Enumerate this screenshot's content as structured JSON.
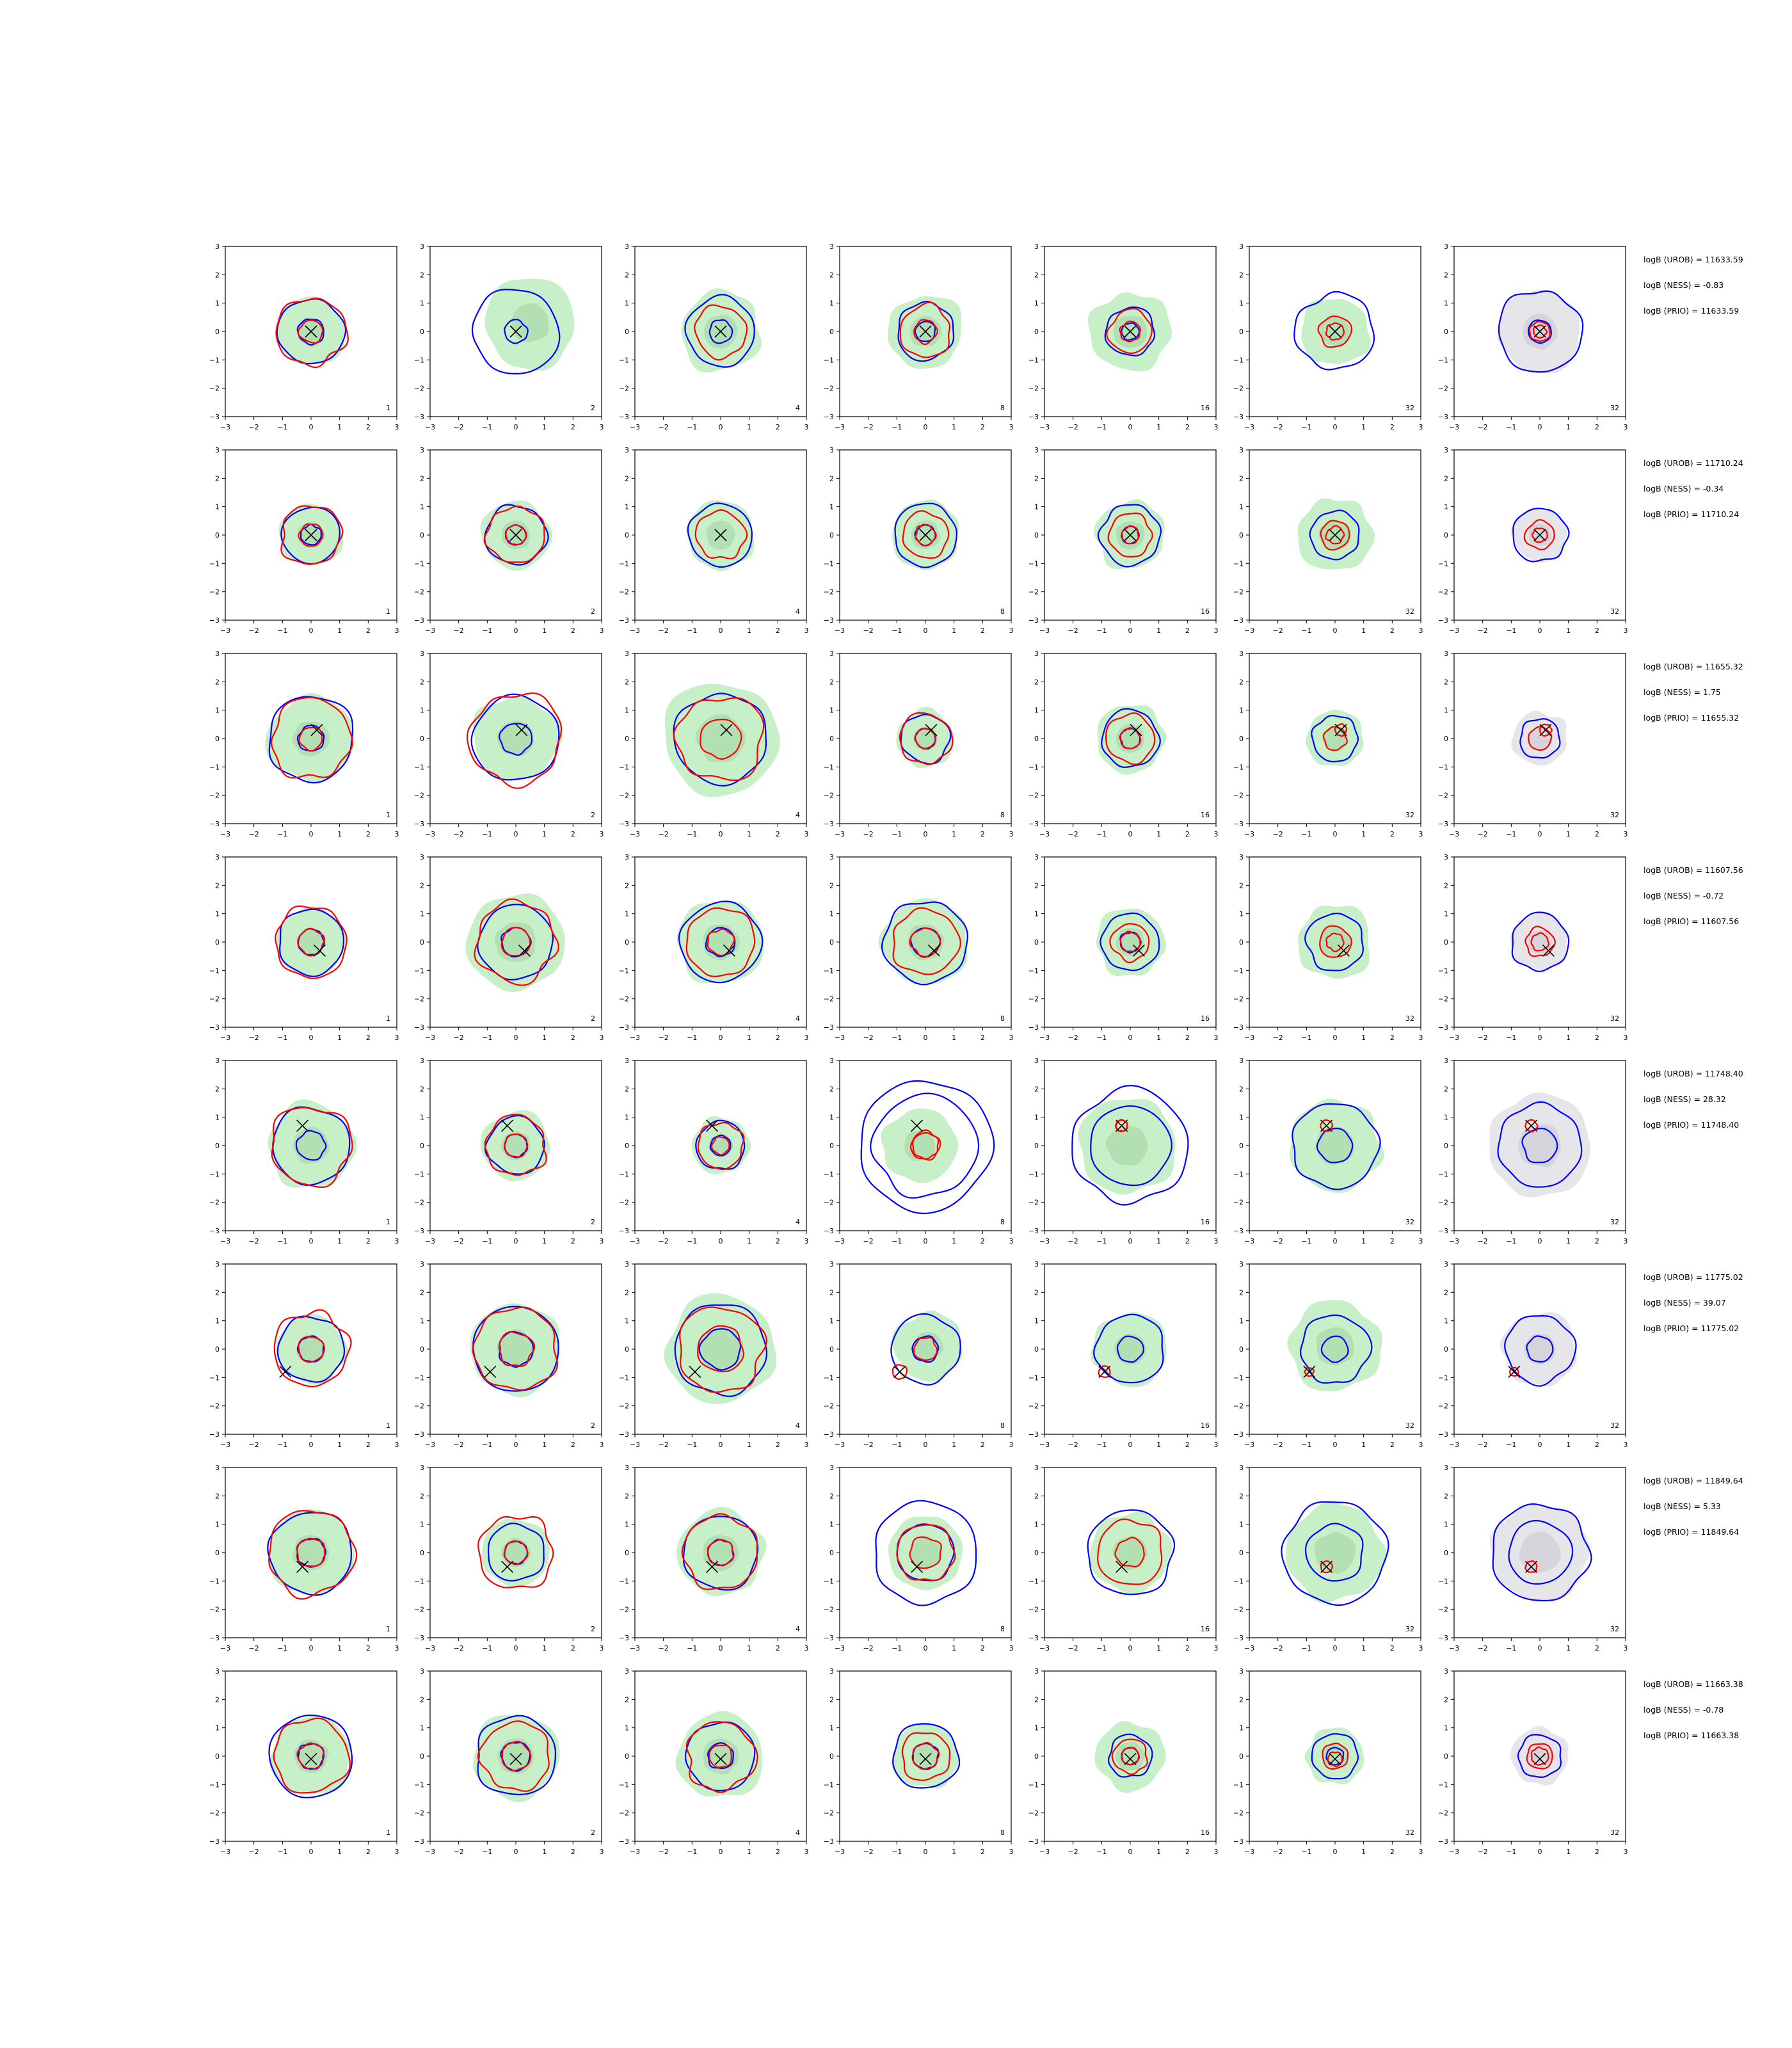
{
  "chart_data": {
    "type": "contour",
    "grid": false,
    "rows": 8,
    "cols": 7,
    "xlim": [
      -3,
      3
    ],
    "ylim": [
      -3,
      3
    ],
    "xticks": [
      -3,
      -2,
      -1,
      0,
      1,
      2,
      3
    ],
    "yticks": [
      -3,
      -2,
      -1,
      0,
      1,
      2,
      3
    ],
    "panel_labels": [
      "1",
      "2",
      "4",
      "8",
      "16",
      "32",
      "32"
    ],
    "colors": {
      "blue_contour": "#0000ff",
      "red_contour": "#ff0000",
      "green_fill": "#c8f0c8",
      "green_inner": "#b3e0b3",
      "grey_fill": "#e6e6ea",
      "grey_inner": "#d4d4da",
      "marker": "#000000"
    },
    "marker_symbol": "×",
    "rows_data": [
      {
        "marker": [
          0.0,
          0.0
        ],
        "annotations": [
          "logB (UROB) = 11633.59",
          "logB (NESS) = -0.83",
          "logB (PRIO) = 11633.59"
        ],
        "panels": [
          {
            "fill_r": 1.2,
            "blue_r": [
              1.15,
              0.45
            ],
            "red_r": [
              1.2,
              0.4
            ]
          },
          {
            "fill_r": 1.6,
            "fill_c": [
              0.5,
              0.3
            ],
            "blue_r": [
              1.5,
              0.4
            ],
            "red_r": []
          },
          {
            "fill_r": 1.4,
            "blue_r": [
              1.2,
              0.4
            ],
            "red_r": [
              0.9
            ]
          },
          {
            "fill_r": 1.3,
            "blue_r": [
              1.0,
              0.35
            ],
            "red_r": [
              0.9,
              0.4
            ]
          },
          {
            "fill_r": 1.4,
            "blue_r": [
              0.85,
              0.3
            ],
            "red_r": [
              0.75,
              0.35
            ]
          },
          {
            "fill_r": 1.2,
            "blue_r": [
              1.35
            ],
            "red_r": [
              0.55,
              0.3
            ]
          },
          {
            "fill_r": 1.45,
            "fill_grey": true,
            "blue_r": [
              1.45,
              0.4
            ],
            "red_r": [
              0.35,
              0.22
            ]
          }
        ]
      },
      {
        "marker": [
          0.0,
          0.0
        ],
        "annotations": [
          "logB (UROB) = 11710.24",
          "logB (NESS) = -0.34",
          "logB (PRIO) = 11710.24"
        ],
        "panels": [
          {
            "fill_r": 1.1,
            "blue_r": [
              1.0,
              0.35
            ],
            "red_r": [
              1.05,
              0.4
            ]
          },
          {
            "fill_r": 1.2,
            "blue_r": [
              1.05,
              0.35
            ],
            "red_r": [
              1.0,
              0.35
            ]
          },
          {
            "fill_r": 1.2,
            "blue_r": [
              1.1
            ],
            "red_r": [
              0.85
            ]
          },
          {
            "fill_r": 1.2,
            "blue_r": [
              1.1,
              0.35
            ],
            "red_r": [
              0.8,
              0.35
            ]
          },
          {
            "fill_r": 1.2,
            "blue_r": [
              1.05,
              0.3
            ],
            "red_r": [
              0.75,
              0.3
            ]
          },
          {
            "fill_r": 1.3,
            "blue_r": [
              0.85
            ],
            "red_r": [
              0.5,
              0.3
            ]
          },
          {
            "fill_r": 0.95,
            "fill_grey": true,
            "blue_r": [
              0.95
            ],
            "red_r": [
              0.5,
              0.25
            ]
          }
        ]
      },
      {
        "marker": [
          0.2,
          0.3
        ],
        "annotations": [
          "logB (UROB) = 11655.32",
          "logB (NESS) = 1.75",
          "logB (PRIO) = 11655.32"
        ],
        "panels": [
          {
            "fill_r": 1.5,
            "blue_r": [
              1.5,
              0.45
            ],
            "red_r": [
              1.4,
              0.4
            ]
          },
          {
            "fill_r": 1.5,
            "blue_r": [
              1.5,
              0.55
            ],
            "red_r": [
              1.6
            ]
          },
          {
            "fill_r": 2.0,
            "blue_r": [
              1.6
            ],
            "red_r": [
              1.5,
              0.7
            ]
          },
          {
            "fill_r": 1.0,
            "blue_r": [
              0.85,
              0.35
            ],
            "red_r": [
              0.9,
              0.35
            ]
          },
          {
            "fill_r": 1.2,
            "blue_r": [
              1.0,
              0.35
            ],
            "red_r": [
              0.85,
              0.35
            ]
          },
          {
            "fill_r": 1.0,
            "blue_r": [
              0.8
            ],
            "red_r": [
              0.4,
              0.2
            ]
          },
          {
            "fill_r": 0.95,
            "fill_grey": true,
            "blue_r": [
              0.7
            ],
            "red_r": [
              0.4,
              0.2
            ]
          }
        ]
      },
      {
        "marker": [
          0.3,
          -0.3
        ],
        "annotations": [
          "logB (UROB) = 11607.56",
          "logB (NESS) = -0.72",
          "logB (PRIO) = 11607.56"
        ],
        "panels": [
          {
            "fill_r": 1.2,
            "blue_r": [
              1.15,
              0.45
            ],
            "red_r": [
              1.25,
              0.45
            ]
          },
          {
            "fill_r": 1.7,
            "blue_r": [
              1.3,
              0.5
            ],
            "red_r": [
              1.4,
              0.5
            ]
          },
          {
            "fill_r": 1.5,
            "blue_r": [
              1.4,
              0.5
            ],
            "red_r": [
              1.2,
              0.45
            ]
          },
          {
            "fill_r": 1.5,
            "blue_r": [
              1.45,
              0.5
            ],
            "red_r": [
              1.15,
              0.5
            ]
          },
          {
            "fill_r": 1.2,
            "blue_r": [
              1.0,
              0.35
            ],
            "red_r": [
              0.65,
              0.35
            ]
          },
          {
            "fill_r": 1.3,
            "blue_r": [
              1.0
            ],
            "red_r": [
              0.55,
              0.3
            ]
          },
          {
            "fill_r": 1.0,
            "fill_grey": true,
            "blue_r": [
              1.0
            ],
            "red_r": [
              0.5,
              0.3
            ]
          }
        ]
      },
      {
        "marker": [
          -0.3,
          0.7
        ],
        "annotations": [
          "logB (UROB) = 11748.40",
          "logB (NESS) = 28.32",
          "logB (PRIO) = 11748.40"
        ],
        "panels": [
          {
            "fill_r": 1.5,
            "blue_r": [
              1.35,
              0.5
            ],
            "red_r": [
              1.4
            ]
          },
          {
            "fill_r": 1.2,
            "blue_r": [
              1.0,
              0.4
            ],
            "red_r": [
              1.05,
              0.4
            ]
          },
          {
            "fill_r": 1.0,
            "blue_r": [
              0.85,
              0.35
            ],
            "red_r": [
              0.8,
              0.3
            ]
          },
          {
            "fill_r": 1.3,
            "fill_c": [
              -0.2,
              0.0
            ],
            "blue_r": [
              2.3,
              1.8
            ],
            "red_r": [
              0.5,
              0.45
            ]
          },
          {
            "fill_r": 1.7,
            "fill_c": [
              -0.1,
              0.0
            ],
            "blue_r": [
              2.0,
              1.4
            ],
            "red_r": [
              0.2,
              0.2
            ]
          },
          {
            "fill_r": 1.6,
            "blue_r": [
              1.5,
              0.6
            ],
            "red_r": [
              0.2
            ]
          },
          {
            "fill_r": 1.8,
            "fill_grey": true,
            "blue_r": [
              1.45,
              0.6
            ],
            "red_r": [
              0.2
            ]
          }
        ]
      },
      {
        "marker": [
          -0.9,
          -0.8
        ],
        "annotations": [
          "logB (UROB) = 11775.02",
          "logB (NESS) = 39.07",
          "logB (PRIO) = 11775.02"
        ],
        "panels": [
          {
            "fill_r": 1.2,
            "blue_r": [
              1.15,
              0.45
            ],
            "red_r": [
              1.3,
              0.45
            ]
          },
          {
            "fill_r": 1.6,
            "blue_r": [
              1.5,
              0.6
            ],
            "red_r": [
              1.45,
              0.6
            ]
          },
          {
            "fill_r": 1.9,
            "blue_r": [
              1.6,
              0.7
            ],
            "red_r": [
              1.5,
              0.8
            ]
          },
          {
            "fill_r": 1.2,
            "fill_c": [
              0.1,
              0.1
            ],
            "blue_r": [
              1.2,
              0.45
            ],
            "red_r": [
              0.4,
              0.25
            ]
          },
          {
            "fill_r": 1.3,
            "fill_c": [
              0.0,
              0.0
            ],
            "blue_r": [
              1.2,
              0.45
            ],
            "red_r": [
              0.2
            ]
          },
          {
            "fill_r": 1.6,
            "fill_c": [
              0.0,
              0.1
            ],
            "blue_r": [
              1.2,
              0.45
            ],
            "red_r": [
              0.15
            ]
          },
          {
            "fill_r": 1.3,
            "fill_grey": true,
            "blue_r": [
              1.2,
              0.45
            ],
            "red_r": [
              0.15
            ]
          }
        ]
      },
      {
        "marker": [
          -0.3,
          -0.5
        ],
        "annotations": [
          "logB (UROB) = 11849.64",
          "logB (NESS) = 5.33",
          "logB (PRIO) = 11849.64"
        ],
        "panels": [
          {
            "fill_r": 1.5,
            "blue_r": [
              1.45,
              0.5
            ],
            "red_r": [
              1.5,
              0.5
            ]
          },
          {
            "fill_r": 1.2,
            "blue_r": [
              1.0,
              0.4
            ],
            "red_r": [
              1.3,
              0.4
            ]
          },
          {
            "fill_r": 1.5,
            "blue_r": [
              1.3,
              0.45
            ],
            "red_r": [
              1.3,
              0.45
            ]
          },
          {
            "fill_r": 1.3,
            "blue_r": [
              1.8,
              1.0
            ],
            "red_r": [
              1.0,
              0.55
            ]
          },
          {
            "fill_r": 1.4,
            "blue_r": [
              1.5
            ],
            "red_r": [
              1.15,
              0.5
            ]
          },
          {
            "fill_r": 1.7,
            "blue_r": [
              1.8,
              1.0
            ],
            "red_r": [
              0.2
            ]
          },
          {
            "fill_r": 1.7,
            "fill_grey": true,
            "blue_r": [
              1.7,
              1.1
            ],
            "red_r": [
              0.2
            ]
          }
        ]
      },
      {
        "marker": [
          0.0,
          -0.1
        ],
        "annotations": [
          "logB (UROB) = 11663.38",
          "logB (NESS) = -0.78",
          "logB (PRIO) = 11663.38"
        ],
        "panels": [
          {
            "fill_r": 1.4,
            "blue_r": [
              1.45,
              0.45
            ],
            "red_r": [
              1.3,
              0.45
            ]
          },
          {
            "fill_r": 1.5,
            "blue_r": [
              1.4,
              0.5
            ],
            "red_r": [
              1.2,
              0.5
            ]
          },
          {
            "fill_r": 1.5,
            "blue_r": [
              1.2,
              0.45
            ],
            "red_r": [
              1.2,
              0.4
            ]
          },
          {
            "fill_r": 1.15,
            "blue_r": [
              1.15,
              0.45
            ],
            "red_r": [
              0.85,
              0.45
            ]
          },
          {
            "fill_r": 1.2,
            "blue_r": [
              0.75,
              0.3
            ],
            "red_r": [
              0.6,
              0.3
            ]
          },
          {
            "fill_r": 1.0,
            "blue_r": [
              0.8,
              0.3
            ],
            "red_r": [
              0.45,
              0.25
            ]
          },
          {
            "fill_r": 1.0,
            "fill_grey": true,
            "blue_r": [
              0.75
            ],
            "red_r": [
              0.45,
              0.3
            ]
          }
        ]
      }
    ]
  }
}
